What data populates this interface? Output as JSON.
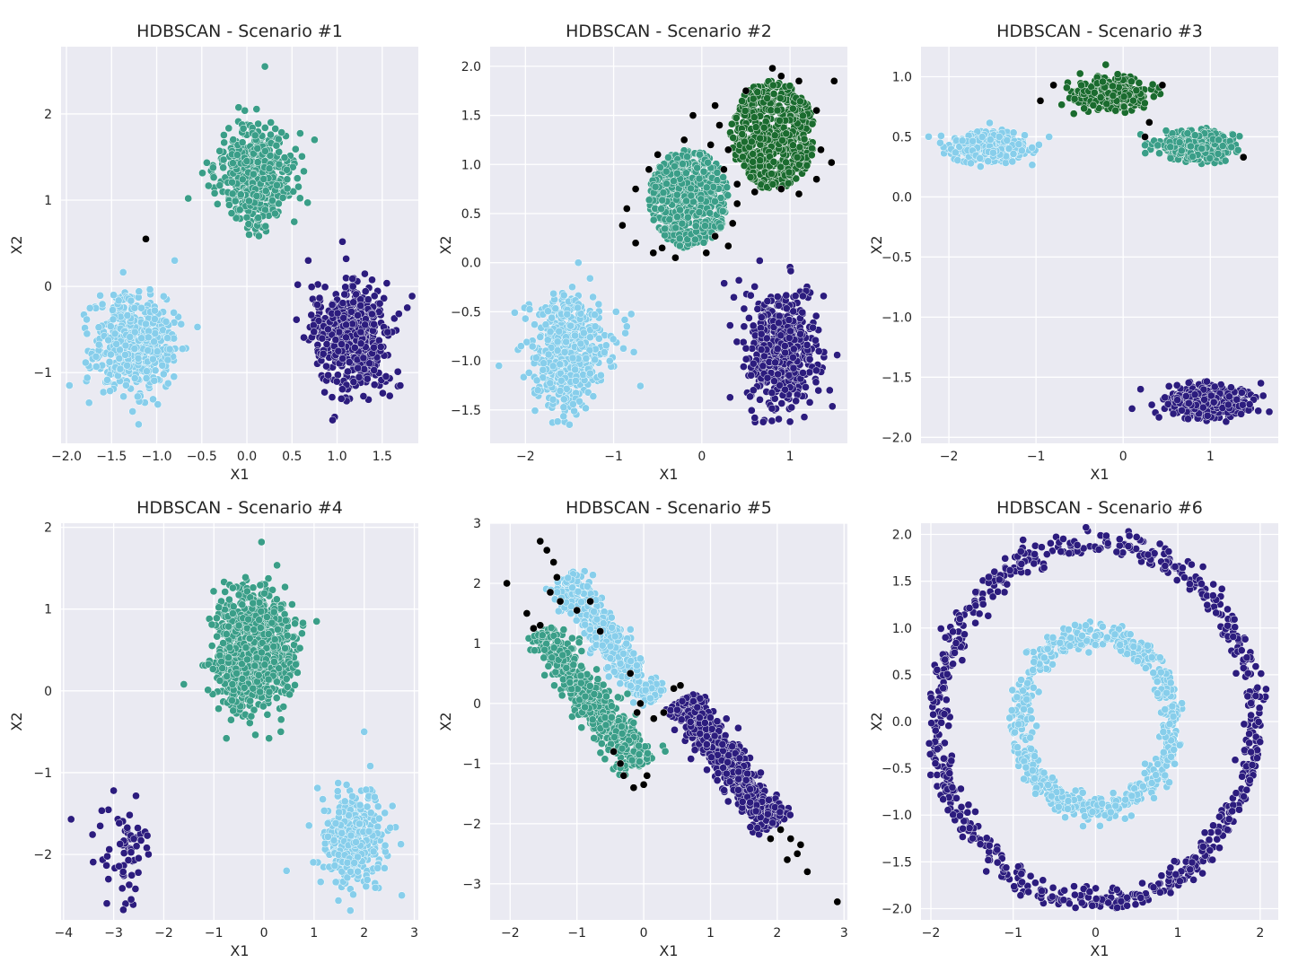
{
  "figure": {
    "background": "#ffffff",
    "plot_background": "#eaeaf2",
    "grid_color": "#ffffff"
  },
  "cluster_colors": {
    "noise": "#000000",
    "light_blue": "#87ceeb",
    "teal": "#3a9e88",
    "indigo": "#2c1c7e",
    "dark_green": "#1a6b2e"
  },
  "chart_data": [
    {
      "type": "scatter",
      "title": "HDBSCAN - Scenario #1",
      "xlabel": "X1",
      "ylabel": "X2",
      "xlim": [
        -2.06,
        1.9
      ],
      "ylim": [
        -1.82,
        2.78
      ],
      "xticks": [
        -2.0,
        -1.5,
        -1.0,
        -0.5,
        0.0,
        0.5,
        1.0,
        1.5
      ],
      "xtick_labels": [
        "−2.0",
        "−1.5",
        "−1.0",
        "−0.5",
        "0.0",
        "0.5",
        "1.0",
        "1.5"
      ],
      "yticks": [
        -1,
        0,
        1,
        2
      ],
      "ytick_labels": [
        "−1",
        "0",
        "1",
        "2"
      ],
      "grid": true,
      "clusters": [
        {
          "color": "light_blue",
          "n": 520,
          "shape": "gauss",
          "center": [
            -1.25,
            -0.65
          ],
          "sd": [
            0.22,
            0.27
          ]
        },
        {
          "color": "teal",
          "n": 520,
          "shape": "gauss",
          "center": [
            0.1,
            1.3
          ],
          "sd": [
            0.2,
            0.27
          ]
        },
        {
          "color": "indigo",
          "n": 560,
          "shape": "gauss",
          "center": [
            1.15,
            -0.6
          ],
          "sd": [
            0.2,
            0.3
          ]
        }
      ],
      "noise_points": [
        [
          -1.12,
          0.55
        ]
      ],
      "extra_points": [
        {
          "color": "teal",
          "points": [
            [
              0.2,
              2.55
            ],
            [
              -0.65,
              1.02
            ],
            [
              0.75,
              1.7
            ]
          ]
        },
        {
          "color": "light_blue",
          "points": [
            [
              -1.2,
              -1.6
            ],
            [
              -1.75,
              -1.35
            ],
            [
              -0.8,
              0.3
            ]
          ]
        },
        {
          "color": "indigo",
          "points": [
            [
              0.68,
              0.3
            ],
            [
              1.1,
              0.32
            ],
            [
              1.7,
              -1.15
            ],
            [
              0.95,
              -1.55
            ]
          ]
        }
      ]
    },
    {
      "type": "scatter",
      "title": "HDBSCAN - Scenario #2",
      "xlabel": "X1",
      "ylabel": "X2",
      "xlim": [
        -2.4,
        1.65
      ],
      "ylim": [
        -1.84,
        2.2
      ],
      "xticks": [
        -2,
        -1,
        0,
        1
      ],
      "xtick_labels": [
        "−2",
        "−1",
        "0",
        "1"
      ],
      "yticks": [
        -1.5,
        -1.0,
        -0.5,
        0.0,
        0.5,
        1.0,
        1.5,
        2.0
      ],
      "ytick_labels": [
        "−1.5",
        "−1.0",
        "−0.5",
        "0.0",
        "0.5",
        "1.0",
        "1.5",
        "2.0"
      ],
      "grid": true,
      "clusters": [
        {
          "color": "light_blue",
          "n": 520,
          "shape": "gauss",
          "center": [
            -1.5,
            -0.9
          ],
          "sd": [
            0.22,
            0.28
          ]
        },
        {
          "color": "teal",
          "n": 560,
          "shape": "disk",
          "center": [
            -0.15,
            0.65
          ],
          "radius": [
            0.45,
            0.5
          ]
        },
        {
          "color": "dark_green",
          "n": 560,
          "shape": "disk",
          "center": [
            0.8,
            1.3
          ],
          "radius": [
            0.48,
            0.55
          ]
        },
        {
          "color": "indigo",
          "n": 560,
          "shape": "gauss",
          "center": [
            0.9,
            -0.9
          ],
          "sd": [
            0.2,
            0.3
          ]
        }
      ],
      "noise_points": [
        [
          -0.9,
          0.38
        ],
        [
          -0.75,
          0.75
        ],
        [
          -0.6,
          0.95
        ],
        [
          -0.5,
          1.1
        ],
        [
          -0.2,
          1.25
        ],
        [
          0.1,
          1.2
        ],
        [
          0.25,
          0.95
        ],
        [
          0.4,
          0.6
        ],
        [
          0.35,
          0.4
        ],
        [
          0.3,
          0.17
        ],
        [
          0.05,
          0.1
        ],
        [
          -0.3,
          0.05
        ],
        [
          -0.55,
          0.1
        ],
        [
          -0.75,
          0.2
        ],
        [
          -0.85,
          0.55
        ],
        [
          0.15,
          1.6
        ],
        [
          0.5,
          1.75
        ],
        [
          0.8,
          1.98
        ],
        [
          1.1,
          1.85
        ],
        [
          1.3,
          1.55
        ],
        [
          1.35,
          1.15
        ],
        [
          1.3,
          0.85
        ],
        [
          1.1,
          0.7
        ],
        [
          0.9,
          0.75
        ],
        [
          0.6,
          0.72
        ],
        [
          0.4,
          0.8
        ],
        [
          0.3,
          1.15
        ],
        [
          1.5,
          1.85
        ],
        [
          1.47,
          1.02
        ],
        [
          -0.1,
          1.5
        ],
        [
          0.2,
          1.4
        ],
        [
          -0.45,
          0.15
        ],
        [
          0.9,
          1.9
        ],
        [
          0.15,
          0.27
        ]
      ],
      "extra_points": [
        {
          "color": "light_blue",
          "points": [
            [
              -1.4,
              0.0
            ],
            [
              -2.3,
              -1.05
            ],
            [
              -1.5,
              -1.65
            ],
            [
              -0.85,
              -0.65
            ],
            [
              -2.05,
              -0.85
            ]
          ]
        },
        {
          "color": "indigo",
          "points": [
            [
              0.42,
              -0.18
            ],
            [
              1.45,
              -1.3
            ],
            [
              1.0,
              -1.62
            ],
            [
              0.6,
              -1.58
            ]
          ]
        }
      ]
    },
    {
      "type": "scatter",
      "title": "HDBSCAN - Scenario #3",
      "xlabel": "X1",
      "ylabel": "X2",
      "xlim": [
        -2.32,
        1.78
      ],
      "ylim": [
        -2.05,
        1.25
      ],
      "xticks": [
        -2,
        -1,
        0,
        1
      ],
      "xtick_labels": [
        "−2",
        "−1",
        "0",
        "1"
      ],
      "yticks": [
        -2.0,
        -1.5,
        -1.0,
        -0.5,
        0.0,
        0.5,
        1.0
      ],
      "ytick_labels": [
        "−2.0",
        "−1.5",
        "−1.0",
        "−0.5",
        "0.0",
        "0.5",
        "1.0"
      ],
      "grid": true,
      "clusters": [
        {
          "color": "light_blue",
          "n": 420,
          "shape": "gauss",
          "center": [
            -1.55,
            0.42
          ],
          "sd": [
            0.2,
            0.06
          ]
        },
        {
          "color": "dark_green",
          "n": 420,
          "shape": "gauss",
          "center": [
            -0.15,
            0.85
          ],
          "sd": [
            0.2,
            0.06
          ]
        },
        {
          "color": "teal",
          "n": 420,
          "shape": "gauss",
          "center": [
            0.85,
            0.43
          ],
          "sd": [
            0.2,
            0.06
          ]
        },
        {
          "color": "indigo",
          "n": 520,
          "shape": "gauss",
          "center": [
            0.95,
            -1.7
          ],
          "sd": [
            0.22,
            0.06
          ]
        }
      ],
      "noise_points": [
        [
          -0.95,
          0.8
        ],
        [
          -0.8,
          0.93
        ],
        [
          0.45,
          0.93
        ],
        [
          0.3,
          0.62
        ],
        [
          0.25,
          0.5
        ],
        [
          1.38,
          0.33
        ]
      ],
      "extra_points": [
        {
          "color": "light_blue",
          "points": [
            [
              -0.85,
              0.5
            ],
            [
              -2.1,
              0.45
            ]
          ]
        },
        {
          "color": "dark_green",
          "points": [
            [
              -0.2,
              1.1
            ]
          ]
        },
        {
          "color": "teal",
          "points": [
            [
              0.2,
              0.52
            ],
            [
              0.25,
              0.43
            ]
          ]
        },
        {
          "color": "indigo",
          "points": [
            [
              1.58,
              -1.55
            ],
            [
              1.55,
              -1.78
            ],
            [
              0.2,
              -1.6
            ]
          ]
        }
      ]
    },
    {
      "type": "scatter",
      "title": "HDBSCAN - Scenario #4",
      "xlabel": "X1",
      "ylabel": "X2",
      "xlim": [
        -4.05,
        3.08
      ],
      "ylim": [
        -2.8,
        2.05
      ],
      "xticks": [
        -4,
        -3,
        -2,
        -1,
        0,
        1,
        2,
        3
      ],
      "xtick_labels": [
        "−4",
        "−3",
        "−2",
        "−1",
        "0",
        "1",
        "2",
        "3"
      ],
      "yticks": [
        -2,
        -1,
        0,
        1,
        2
      ],
      "ytick_labels": [
        "−2",
        "−1",
        "0",
        "1",
        "2"
      ],
      "grid": true,
      "clusters": [
        {
          "color": "teal",
          "n": 1200,
          "shape": "gauss",
          "center": [
            -0.2,
            0.5
          ],
          "sd": [
            0.35,
            0.32
          ]
        },
        {
          "color": "light_blue",
          "n": 360,
          "shape": "gauss",
          "center": [
            1.8,
            -1.8
          ],
          "sd": [
            0.3,
            0.27
          ]
        },
        {
          "color": "indigo",
          "n": 60,
          "shape": "gauss",
          "center": [
            -2.8,
            -1.95
          ],
          "sd": [
            0.25,
            0.3
          ]
        }
      ],
      "noise_points": [],
      "extra_points": [
        {
          "color": "teal",
          "points": [
            [
              -0.05,
              1.82
            ],
            [
              1.05,
              0.85
            ],
            [
              -1.6,
              0.08
            ],
            [
              -0.75,
              -0.58
            ],
            [
              0.1,
              -0.58
            ]
          ]
        },
        {
          "color": "light_blue",
          "points": [
            [
              2.0,
              -0.5
            ],
            [
              0.45,
              -2.2
            ],
            [
              2.75,
              -2.5
            ]
          ]
        },
        {
          "color": "indigo",
          "points": [
            [
              -3.85,
              -1.57
            ],
            [
              -2.65,
              -2.55
            ],
            [
              -3.0,
              -1.22
            ]
          ]
        }
      ]
    },
    {
      "type": "scatter",
      "title": "HDBSCAN - Scenario #5",
      "xlabel": "X1",
      "ylabel": "X2",
      "xlim": [
        -2.3,
        3.05
      ],
      "ylim": [
        -3.6,
        3.0
      ],
      "xticks": [
        -2,
        -1,
        0,
        1,
        2,
        3
      ],
      "xtick_labels": [
        "−2",
        "−1",
        "0",
        "1",
        "2",
        "3"
      ],
      "yticks": [
        -3,
        -2,
        -1,
        0,
        1,
        2,
        3
      ],
      "ytick_labels": [
        "−3",
        "−2",
        "−1",
        "0",
        "1",
        "2",
        "3"
      ],
      "grid": true,
      "clusters": [
        {
          "color": "light_blue",
          "n": 420,
          "shape": "band",
          "from": [
            -1.2,
            2.1
          ],
          "to": [
            0.15,
            0.05
          ],
          "width": 0.14
        },
        {
          "color": "teal",
          "n": 520,
          "shape": "band",
          "from": [
            -1.55,
            1.2
          ],
          "to": [
            -0.05,
            -1.05
          ],
          "width": 0.15
        },
        {
          "color": "indigo",
          "n": 620,
          "shape": "band",
          "from": [
            0.55,
            0.05
          ],
          "to": [
            2.0,
            -2.0
          ],
          "width": 0.14
        }
      ],
      "noise_points": [
        [
          -1.55,
          2.7
        ],
        [
          -1.45,
          2.55
        ],
        [
          -1.35,
          2.35
        ],
        [
          -1.3,
          2.1
        ],
        [
          -1.4,
          1.85
        ],
        [
          -1.25,
          1.7
        ],
        [
          -1.55,
          1.3
        ],
        [
          -1.65,
          1.25
        ],
        [
          -1.75,
          1.5
        ],
        [
          -2.05,
          2.0
        ],
        [
          -1.0,
          1.55
        ],
        [
          -0.8,
          1.7
        ],
        [
          -0.65,
          1.2
        ],
        [
          -0.2,
          0.5
        ],
        [
          -0.05,
          0.0
        ],
        [
          -0.1,
          -0.15
        ],
        [
          0.15,
          -0.25
        ],
        [
          0.3,
          -0.15
        ],
        [
          0.45,
          0.25
        ],
        [
          0.55,
          0.3
        ],
        [
          0.05,
          -1.2
        ],
        [
          0.0,
          -1.35
        ],
        [
          -0.15,
          -1.4
        ],
        [
          -0.35,
          -1.0
        ],
        [
          -0.3,
          -1.2
        ],
        [
          -0.45,
          -0.8
        ],
        [
          2.05,
          -2.1
        ],
        [
          2.2,
          -2.25
        ],
        [
          2.3,
          -2.5
        ],
        [
          2.45,
          -2.8
        ],
        [
          2.35,
          -2.35
        ],
        [
          2.9,
          -3.3
        ],
        [
          1.9,
          -2.25
        ],
        [
          2.15,
          -2.6
        ]
      ],
      "extra_points": []
    },
    {
      "type": "scatter",
      "title": "HDBSCAN - Scenario #6",
      "xlabel": "X1",
      "ylabel": "X2",
      "xlim": [
        -2.12,
        2.22
      ],
      "ylim": [
        -2.12,
        2.12
      ],
      "xticks": [
        -2,
        -1,
        0,
        1,
        2
      ],
      "xtick_labels": [
        "−2",
        "−1",
        "0",
        "1",
        "2"
      ],
      "yticks": [
        -2.0,
        -1.5,
        -1.0,
        -0.5,
        0.0,
        0.5,
        1.0,
        1.5,
        2.0
      ],
      "ytick_labels": [
        "−2.0",
        "−1.5",
        "−1.0",
        "−0.5",
        "0.0",
        "0.5",
        "1.0",
        "1.5",
        "2.0"
      ],
      "grid": true,
      "clusters": [
        {
          "color": "indigo",
          "n": 720,
          "shape": "ring",
          "center": [
            0.0,
            0.0
          ],
          "radius": 1.92,
          "spread": 0.07
        },
        {
          "color": "light_blue",
          "n": 600,
          "shape": "ring",
          "center": [
            0.0,
            0.0
          ],
          "radius": 0.93,
          "spread": 0.07
        }
      ],
      "noise_points": [],
      "extra_points": []
    }
  ]
}
